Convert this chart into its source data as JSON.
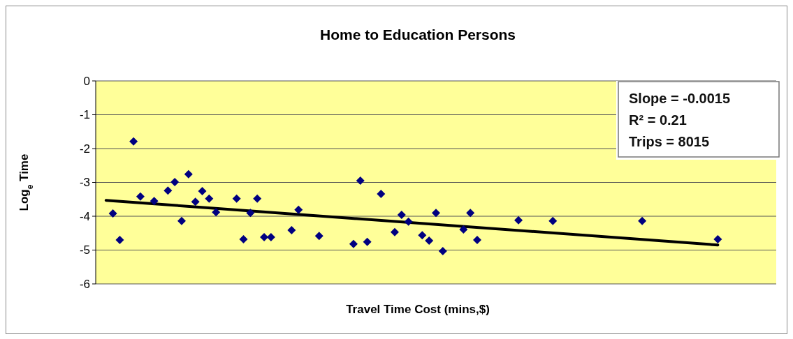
{
  "chart_data": {
    "type": "scatter",
    "title": "Home to Education Persons",
    "xlabel": "Travel Time Cost (mins,$)",
    "ylabel": "Log$_{e}$ Time",
    "categories": [
      null,
      null,
      null,
      null,
      null,
      null,
      null,
      null,
      null,
      null,
      null,
      null,
      null,
      null,
      null,
      null,
      null,
      null,
      null,
      null,
      null,
      null,
      null,
      null,
      null,
      null,
      null,
      null,
      null,
      null,
      null,
      null,
      null,
      null,
      null,
      null,
      null,
      null,
      null,
      null,
      null,
      null,
      null,
      null,
      null,
      null,
      null,
      null,
      null,
      null,
      null,
      null,
      null,
      null,
      null,
      null,
      null,
      null,
      null,
      null,
      null,
      null,
      null,
      null,
      null,
      null,
      null,
      null,
      null,
      null,
      null,
      null,
      null,
      null,
      null,
      null,
      null,
      null,
      null,
      null,
      null,
      null,
      null,
      null,
      null,
      null,
      null,
      null,
      null,
      null,
      null,
      null,
      null,
      null,
      null,
      null,
      null,
      null,
      null
    ],
    "series": [
      {
        "color": "#000080",
        "marker": "diamond",
        "values": [
          null,
          null,
          -3.92,
          -4.7,
          null,
          -1.79,
          -3.42,
          null,
          -3.55,
          null,
          -3.24,
          -2.99,
          -4.14,
          -2.76,
          -3.57,
          -3.26,
          -3.48,
          -3.88,
          null,
          null,
          -3.48,
          -4.68,
          -3.9,
          -3.48,
          -4.62,
          -4.62,
          null,
          null,
          -4.41,
          -3.81,
          null,
          null,
          -4.58,
          null,
          null,
          null,
          null,
          -4.82,
          -2.95,
          -4.76,
          null,
          -3.34,
          null,
          -4.47,
          -3.96,
          -4.16,
          null,
          -4.56,
          -4.72,
          -3.9,
          -5.03,
          null,
          null,
          -4.39,
          -3.9,
          -4.7,
          null,
          null,
          null,
          null,
          null,
          -4.12,
          null,
          null,
          null,
          null,
          -4.14,
          null,
          null,
          null,
          null,
          null,
          null,
          null,
          null,
          null,
          null,
          null,
          null,
          -4.14,
          null,
          null,
          null,
          null,
          null,
          null,
          null,
          null,
          null,
          null,
          -4.68,
          null,
          null,
          null,
          null,
          null,
          null,
          null,
          null
        ]
      },
      {
        "type": "line",
        "color": "#000000",
        "values": [
          null,
          -3.53,
          null,
          null,
          null,
          null,
          null,
          null,
          null,
          null,
          null,
          null,
          null,
          null,
          null,
          null,
          null,
          null,
          null,
          null,
          null,
          null,
          null,
          null,
          null,
          null,
          null,
          null,
          null,
          null,
          null,
          null,
          null,
          null,
          null,
          null,
          null,
          null,
          null,
          null,
          null,
          null,
          null,
          null,
          null,
          null,
          null,
          null,
          null,
          null,
          null,
          null,
          null,
          null,
          null,
          null,
          null,
          null,
          null,
          null,
          null,
          null,
          null,
          null,
          null,
          null,
          null,
          null,
          null,
          null,
          null,
          null,
          null,
          null,
          null,
          null,
          null,
          null,
          null,
          null,
          null,
          null,
          null,
          null,
          null,
          null,
          null,
          null,
          null,
          null,
          -4.85,
          null,
          null,
          null,
          null,
          null,
          null,
          null,
          null
        ]
      }
    ],
    "ylim": [
      -6,
      0
    ],
    "yticks": [
      0,
      -1,
      -2,
      -3,
      -4,
      -5,
      -6
    ],
    "grid": "y",
    "tick_labels": "y",
    "annotations": [
      "Slope = -0.0015",
      "R² = 0.21",
      "Trips = 8015"
    ]
  }
}
